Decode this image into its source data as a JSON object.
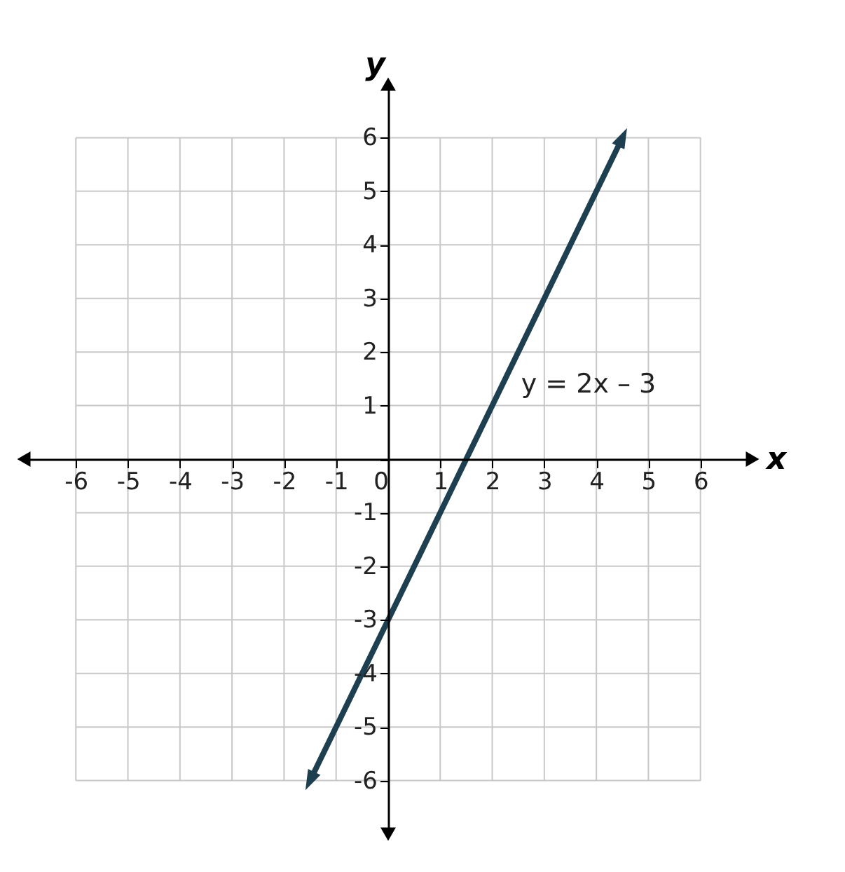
{
  "chart_data": {
    "type": "line",
    "xlabel": "x",
    "ylabel": "y",
    "xlim": [
      -7,
      7
    ],
    "ylim": [
      -7,
      7
    ],
    "xticks": [
      -6,
      -5,
      -4,
      -3,
      -2,
      -1,
      0,
      1,
      2,
      3,
      4,
      5,
      6
    ],
    "yticks": [
      -6,
      -5,
      -4,
      -3,
      -2,
      -1,
      {
        "value": 0,
        "label": null
      },
      1,
      2,
      3,
      4,
      5,
      6
    ],
    "grid": true,
    "series": [
      {
        "color": "#1d3f50",
        "marker": "triangle",
        "x": [
          -1.5,
          4.5
        ],
        "values": [
          -6,
          6
        ]
      }
    ],
    "annotations": [
      "y = 2x – 3"
    ]
  }
}
